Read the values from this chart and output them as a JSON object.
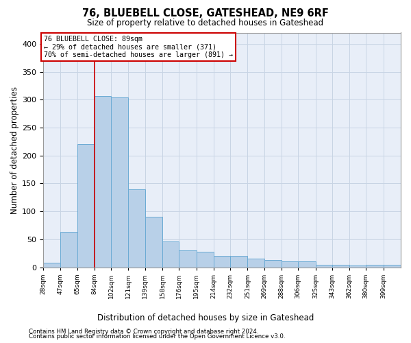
{
  "title": "76, BLUEBELL CLOSE, GATESHEAD, NE9 6RF",
  "subtitle": "Size of property relative to detached houses in Gateshead",
  "xlabel": "Distribution of detached houses by size in Gateshead",
  "ylabel": "Number of detached properties",
  "footer_line1": "Contains HM Land Registry data © Crown copyright and database right 2024.",
  "footer_line2": "Contains public sector information licensed under the Open Government Licence v3.0.",
  "bar_color": "#b8d0e8",
  "bar_edge_color": "#6aaad4",
  "grid_color": "#c8d4e4",
  "background_color": "#e8eef8",
  "vline_color": "#cc0000",
  "vline_x_bin_index": 3,
  "annotation_box_color": "#cc0000",
  "annotation_text_line1": "76 BLUEBELL CLOSE: 89sqm",
  "annotation_text_line2": "← 29% of detached houses are smaller (371)",
  "annotation_text_line3": "70% of semi-detached houses are larger (891) →",
  "bins": [
    28,
    47,
    65,
    84,
    102,
    121,
    139,
    158,
    176,
    195,
    214,
    232,
    251,
    269,
    288,
    306,
    325,
    343,
    362,
    380,
    399
  ],
  "bar_heights": [
    8,
    63,
    221,
    306,
    304,
    140,
    90,
    46,
    30,
    28,
    20,
    20,
    15,
    13,
    11,
    10,
    5,
    5,
    3,
    5,
    5
  ],
  "ylim": [
    0,
    420
  ],
  "yticks": [
    0,
    50,
    100,
    150,
    200,
    250,
    300,
    350,
    400
  ]
}
